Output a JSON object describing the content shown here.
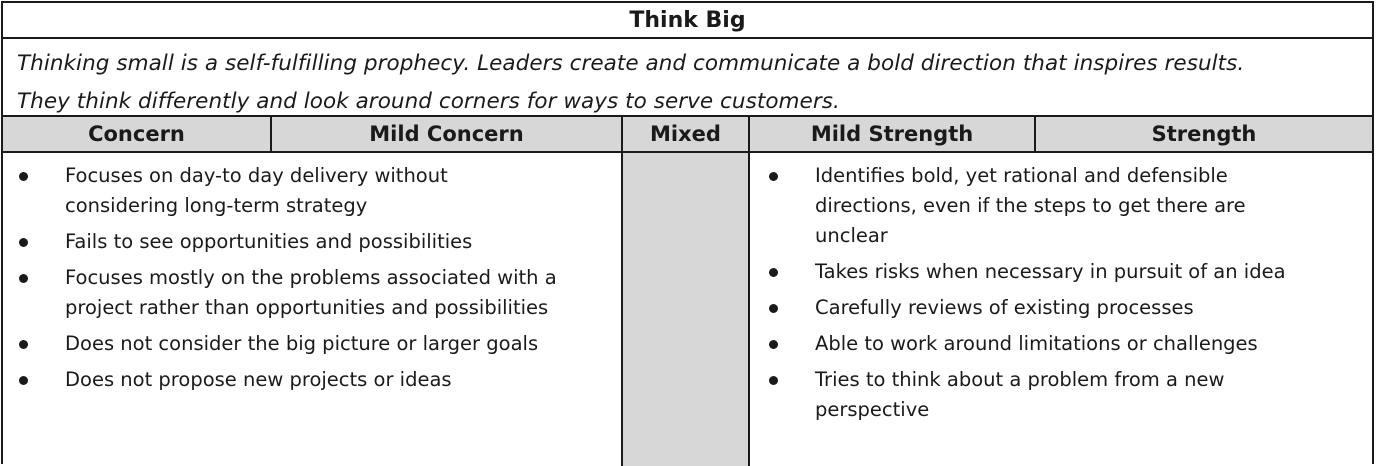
{
  "title": "Think Big",
  "description": {
    "line1": "Thinking small is a self-fulfilling prophecy. Leaders create and communicate a bold direction that inspires results.",
    "line2": "They think differently and look around corners for ways to serve customers."
  },
  "columns": {
    "concern": "Concern",
    "mild_concern": "Mild Concern",
    "mixed": "Mixed",
    "mild_strength": "Mild Strength",
    "strength": "Strength"
  },
  "concern_items": [
    {
      "line1": "Focuses on day-to day delivery without",
      "line2": "considering long-term strategy"
    },
    {
      "line1": "Fails to see opportunities and possibilities",
      "line2": ""
    },
    {
      "line1": "Focuses mostly on the problems associated with a",
      "line2": "project rather than opportunities and possibilities"
    },
    {
      "line1": "Does not consider the big picture or larger goals",
      "line2": ""
    },
    {
      "line1": "Does not propose new projects or ideas",
      "line2": ""
    }
  ],
  "strength_items": [
    {
      "line1": "Identifies bold, yet rational and defensible",
      "line2": "directions, even if the steps to get there are",
      "line3": "unclear"
    },
    {
      "line1": "Takes risks when necessary in pursuit of an idea",
      "line2": "",
      "line3": ""
    },
    {
      "line1": "Carefully reviews of existing processes",
      "line2": "",
      "line3": ""
    },
    {
      "line1": "Able to work around limitations or challenges",
      "line2": "",
      "line3": ""
    },
    {
      "line1": "Tries to think about a problem from a new",
      "line2": "perspective",
      "line3": ""
    }
  ],
  "colors": {
    "border": "#1a1a1a",
    "header_fill": "#d7d7d7",
    "mixed_fill": "#d7d7d7"
  }
}
